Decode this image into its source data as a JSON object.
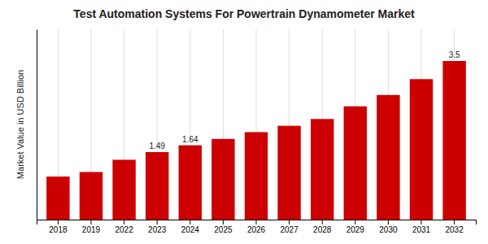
{
  "chart_data": {
    "type": "bar",
    "title": "Test Automation Systems For Powertrain Dynamometer Market",
    "y_label": "Market Value in USD Billion",
    "categories": [
      "2018",
      "2019",
      "2022",
      "2023",
      "2024",
      "2025",
      "2026",
      "2027",
      "2028",
      "2029",
      "2030",
      "2031",
      "2032"
    ],
    "values": [
      0.95,
      1.05,
      1.32,
      1.49,
      1.64,
      1.78,
      1.93,
      2.07,
      2.22,
      2.5,
      2.75,
      3.1,
      3.5
    ],
    "value_labels": [
      null,
      null,
      null,
      "1.49",
      "1.64",
      null,
      null,
      null,
      null,
      null,
      null,
      null,
      "3.5"
    ],
    "data_labels": true,
    "color": "#cc0000",
    "ylim": [
      0,
      4.2
    ],
    "yticks": [],
    "tick_labels": "x",
    "grid": true
  }
}
